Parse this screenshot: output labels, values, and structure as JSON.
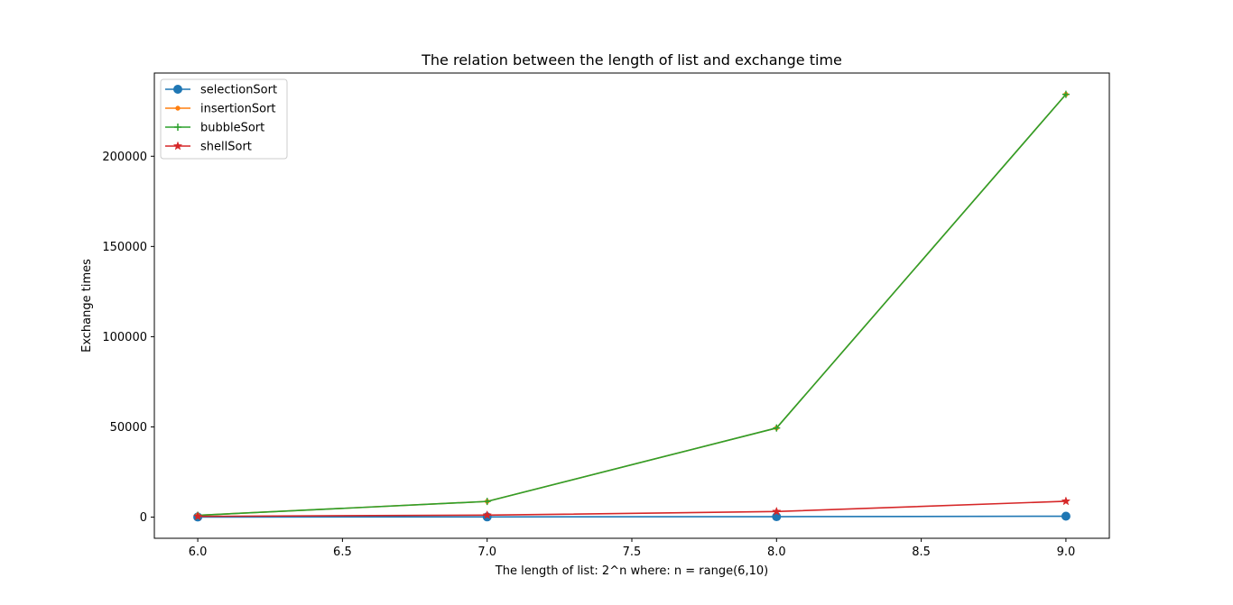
{
  "chart_data": {
    "type": "line",
    "title": "The relation between the length of list and exchange time",
    "xlabel": "The length of list: 2^n where: n = range(6,10)",
    "ylabel": "Exchange times",
    "x": [
      6.0,
      7.0,
      8.0,
      9.0
    ],
    "xlim": [
      5.85,
      9.15
    ],
    "ylim": [
      -11720,
      246110
    ],
    "x_ticks": [
      6.0,
      6.5,
      7.0,
      7.5,
      8.0,
      8.5,
      9.0
    ],
    "x_tick_labels": [
      "6.0",
      "6.5",
      "7.0",
      "7.5",
      "8.0",
      "8.5",
      "9.0"
    ],
    "y_ticks": [
      0,
      50000,
      100000,
      150000,
      200000
    ],
    "y_tick_labels": [
      "0",
      "50000",
      "100000",
      "150000",
      "200000"
    ],
    "grid": false,
    "legend_position": "top-left",
    "series": [
      {
        "name": "selectionSort",
        "values": [
          64,
          128,
          256,
          512
        ],
        "color": "#1f77b4",
        "marker": "circle"
      },
      {
        "name": "insertionSort",
        "values": [
          1000,
          8700,
          49400,
          234300
        ],
        "color": "#ff7f0e",
        "marker": "point"
      },
      {
        "name": "bubbleSort",
        "values": [
          1000,
          8700,
          49400,
          234300
        ],
        "color": "#2ca02c",
        "marker": "plus"
      },
      {
        "name": "shellSort",
        "values": [
          450,
          1100,
          3100,
          8800
        ],
        "color": "#d62728",
        "marker": "star"
      }
    ]
  }
}
